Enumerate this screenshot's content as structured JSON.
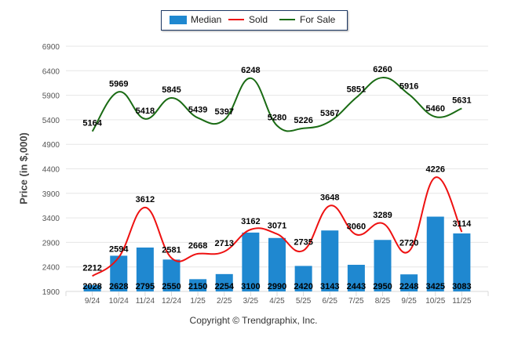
{
  "chart_data": {
    "type": "bar",
    "title": "",
    "xlabel": "",
    "ylabel": "Price (in $,000)",
    "ylim": [
      1900,
      6900
    ],
    "yticks": [
      1900,
      2400,
      2900,
      3400,
      3900,
      4400,
      4900,
      5400,
      5900,
      6400,
      6900
    ],
    "grid": true,
    "legend_position": "top-center",
    "categories": [
      "9/24",
      "10/24",
      "11/24",
      "12/24",
      "1/25",
      "2/25",
      "3/25",
      "4/25",
      "5/25",
      "6/25",
      "7/25",
      "8/25",
      "9/25",
      "10/25",
      "11/25"
    ],
    "series": [
      {
        "name": "Median",
        "type": "bar",
        "color": "#1f88d0",
        "values": [
          2028,
          2628,
          2795,
          2550,
          2150,
          2254,
          3100,
          2990,
          2420,
          3143,
          2443,
          2950,
          2248,
          3425,
          3083
        ]
      },
      {
        "name": "Sold",
        "type": "line",
        "color": "#ee1111",
        "values": [
          2212,
          2594,
          3612,
          2581,
          2668,
          2713,
          3162,
          3071,
          2735,
          3648,
          3060,
          3289,
          2720,
          4226,
          3114
        ]
      },
      {
        "name": "For Sale",
        "type": "line",
        "color": "#1a6b14",
        "values": [
          5164,
          5969,
          5418,
          5845,
          5439,
          5397,
          6248,
          5280,
          5226,
          5367,
          5851,
          6260,
          5916,
          5460,
          5631
        ]
      }
    ]
  },
  "legend": {
    "items": [
      {
        "label": "Median",
        "color": "#1f88d0"
      },
      {
        "label": "Sold",
        "color": "#ee1111"
      },
      {
        "label": "For Sale",
        "color": "#1a6b14"
      }
    ]
  },
  "footer": {
    "copyright": "Copyright © Trendgraphix, Inc."
  }
}
